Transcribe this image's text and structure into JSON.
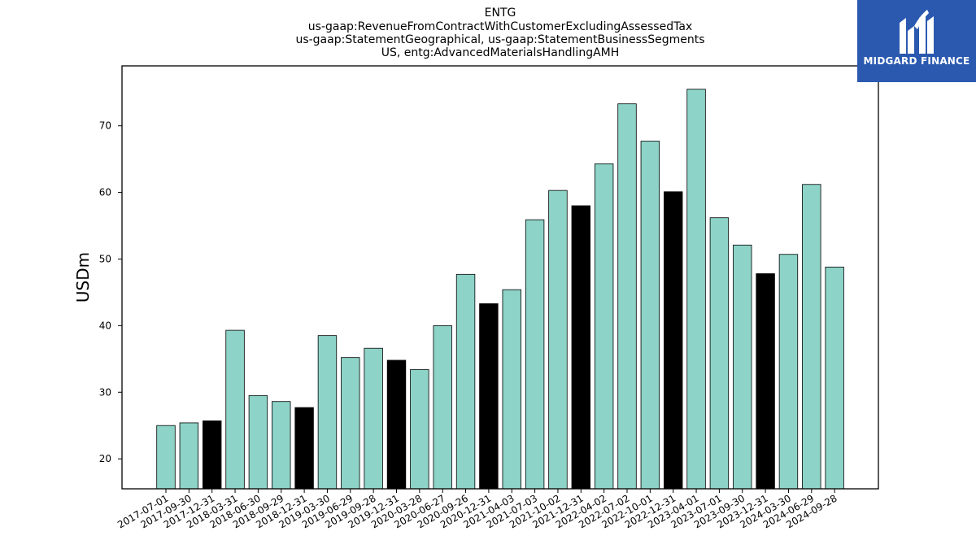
{
  "logo": {
    "text": "MIDGARD FINANCE",
    "icon": "midgard-logo-icon",
    "background": "#2b59b0"
  },
  "chart_data": {
    "type": "bar",
    "title_lines": [
      "ENTG",
      "us-gaap:RevenueFromContractWithCustomerExcludingAssessedTax",
      "us-gaap:StatementGeographical, us-gaap:StatementBusinessSegments",
      "US, entg:AdvancedMaterialsHandlingAMH"
    ],
    "xlabel": "",
    "ylabel": "USDm",
    "ylim": [
      15.5,
      79
    ],
    "yticks": [
      20,
      30,
      40,
      50,
      60,
      70
    ],
    "grid": false,
    "colors": {
      "quarter": "#8dd3c7",
      "year_end": "#000000",
      "edge": "#000000"
    },
    "categories": [
      "2017-07-01",
      "2017-09-30",
      "2017-12-31",
      "2018-03-31",
      "2018-06-30",
      "2018-09-29",
      "2018-12-31",
      "2019-03-30",
      "2019-06-29",
      "2019-09-28",
      "2019-12-31",
      "2020-03-28",
      "2020-06-27",
      "2020-09-26",
      "2020-12-31",
      "2021-04-03",
      "2021-07-03",
      "2021-10-02",
      "2021-12-31",
      "2022-04-02",
      "2022-07-02",
      "2022-10-01",
      "2022-12-31",
      "2023-04-01",
      "2023-07-01",
      "2023-09-30",
      "2023-12-31",
      "2024-03-30",
      "2024-06-29",
      "2024-09-28"
    ],
    "values": [
      25.0,
      25.4,
      25.7,
      39.3,
      29.5,
      28.6,
      27.7,
      38.5,
      35.2,
      36.6,
      34.8,
      33.4,
      40.0,
      47.7,
      43.3,
      45.4,
      55.9,
      60.3,
      58.0,
      64.3,
      73.3,
      67.7,
      60.1,
      75.5,
      56.2,
      52.1,
      47.8,
      50.7,
      61.2,
      48.8
    ],
    "highlight": [
      false,
      false,
      true,
      false,
      false,
      false,
      true,
      false,
      false,
      false,
      true,
      false,
      false,
      false,
      true,
      false,
      false,
      false,
      true,
      false,
      false,
      false,
      true,
      false,
      false,
      false,
      true,
      false,
      false,
      false
    ]
  }
}
